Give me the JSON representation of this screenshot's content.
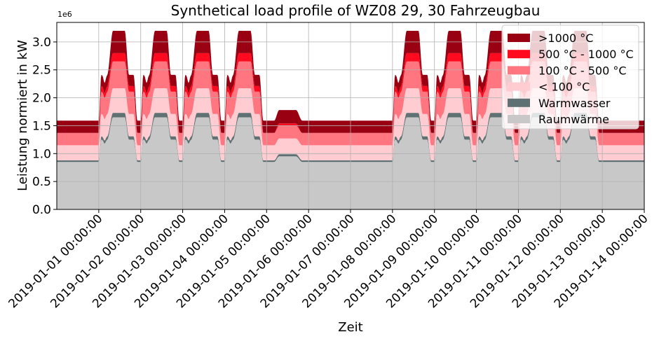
{
  "chart_data": {
    "type": "area",
    "title": "Synthetical load profile of WZ08 29, 30 Fahrzeugbau",
    "xlabel": "Zeit",
    "ylabel": "Leistung normiert in kW",
    "y_offset_label": "1e6",
    "ylim": [
      0,
      3.35
    ],
    "y_scale_factor": 1000000,
    "yticks": [
      0.0,
      0.5,
      1.0,
      1.5,
      2.0,
      2.5,
      3.0
    ],
    "ytick_labels": [
      "0.0",
      "0.5",
      "1.0",
      "1.5",
      "2.0",
      "2.5",
      "3.0"
    ],
    "xlim_days": [
      0,
      14
    ],
    "xticks_days": [
      1,
      2,
      3,
      4,
      5,
      6,
      7,
      8,
      9,
      10,
      11,
      12,
      13,
      14
    ],
    "xtick_labels": [
      "2019-01-01 00:00:00",
      "2019-01-02 00:00:00",
      "2019-01-03 00:00:00",
      "2019-01-04 00:00:00",
      "2019-01-05 00:00:00",
      "2019-01-06 00:00:00",
      "2019-01-07 00:00:00",
      "2019-01-08 00:00:00",
      "2019-01-09 00:00:00",
      "2019-01-10 00:00:00",
      "2019-01-11 00:00:00",
      "2019-01-12 00:00:00",
      "2019-01-13 00:00:00",
      "2019-01-14 00:00:00"
    ],
    "grid": true,
    "legend_position": "top-right",
    "stacked": true,
    "day_types": [
      "off",
      "work",
      "work",
      "work",
      "work",
      "sat",
      "off",
      "off",
      "work",
      "work",
      "work",
      "work",
      "work",
      "off",
      "work"
    ],
    "series": [
      {
        "name": "Raumwärme",
        "color": "#c8c8c8",
        "off": 0.85,
        "sat": 0.95,
        "work_peak": 1.65,
        "work_dip": 1.25
      },
      {
        "name": "Warmwasser",
        "color": "#5f7173",
        "off": 0.03,
        "sat": 0.04,
        "work_peak": 0.08,
        "work_dip": 0.06
      },
      {
        "name": "< 100 °C",
        "color": "#ffccd2",
        "off": 0.27,
        "sat": 0.28,
        "work_peak": 0.44,
        "work_dip": 0.4
      },
      {
        "name": "100 °C - 500 °C",
        "color": "#ff7681",
        "off": 0.22,
        "sat": 0.23,
        "work_peak": 0.48,
        "work_dip": 0.4
      },
      {
        "name": "500 °C - 1000 °C",
        "color": "#ff0a1e",
        "off": 0.0,
        "sat": 0.04,
        "work_peak": 0.15,
        "work_dip": 0.1
      },
      {
        "name": ">1000 °C",
        "color": "#990012",
        "off": 0.22,
        "sat": 0.24,
        "work_peak": 0.4,
        "work_dip": 0.2
      }
    ],
    "legend_order": [
      ">1000 °C",
      "500 °C - 1000 °C",
      "100 °C - 500 °C",
      "< 100 °C",
      "Warmwasser",
      "Raumwärme"
    ]
  }
}
